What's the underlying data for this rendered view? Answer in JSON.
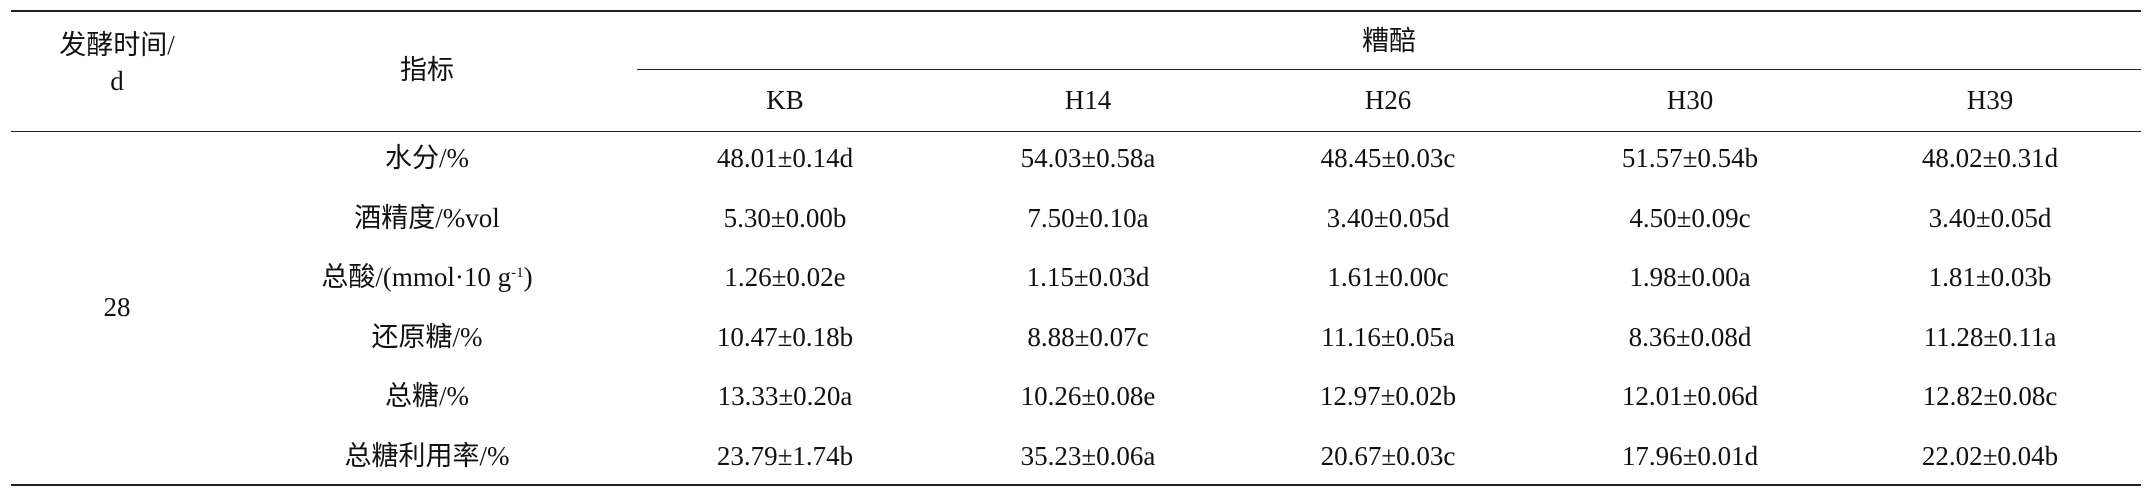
{
  "table": {
    "header": {
      "day_label": [
        "发酵时间/",
        "d"
      ],
      "indicator_label": "指标",
      "group_label": "糟醅",
      "samples": [
        "KB",
        "H14",
        "H26",
        "H30",
        "H39"
      ]
    },
    "day": "28",
    "rows": [
      {
        "label": "水分/%",
        "values": [
          "48.01±0.14d",
          "54.03±0.58a",
          "48.45±0.03c",
          "51.57±0.54b",
          "48.02±0.31d"
        ]
      },
      {
        "label": "酒精度/%vol",
        "values": [
          "5.30±0.00b",
          "7.50±0.10a",
          "3.40±0.05d",
          "4.50±0.09c",
          "3.40±0.05d"
        ]
      },
      {
        "label": "总酸/(mmol·10 g",
        "label_sup": "-1",
        "label_tail": ")",
        "values": [
          "1.26±0.02e",
          "1.15±0.03d",
          "1.61±0.00c",
          "1.98±0.00a",
          "1.81±0.03b"
        ]
      },
      {
        "label": "还原糖/%",
        "values": [
          "10.47±0.18b",
          "8.88±0.07c",
          "11.16±0.05a",
          "8.36±0.08d",
          "11.28±0.11a"
        ]
      },
      {
        "label": "总糖/%",
        "values": [
          "13.33±0.20a",
          "10.26±0.08e",
          "12.97±0.02b",
          "12.01±0.06d",
          "12.82±0.08c"
        ]
      },
      {
        "label": "总糖利用率/%",
        "values": [
          "23.79±1.74b",
          "35.23±0.06a",
          "20.67±0.03c",
          "17.96±0.01d",
          "22.02±0.04b"
        ]
      }
    ]
  }
}
